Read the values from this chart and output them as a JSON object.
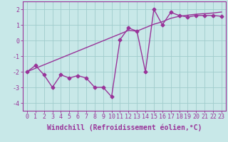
{
  "x": [
    0,
    1,
    2,
    3,
    4,
    5,
    6,
    7,
    8,
    9,
    10,
    11,
    12,
    13,
    14,
    15,
    16,
    17,
    18,
    19,
    20,
    21,
    22,
    23
  ],
  "y_zigzag": [
    -2.0,
    -1.6,
    -2.2,
    -3.0,
    -2.2,
    -2.4,
    -2.25,
    -2.4,
    -3.0,
    -3.0,
    -3.6,
    0.05,
    0.8,
    0.6,
    -2.0,
    2.0,
    1.0,
    1.8,
    1.6,
    1.5,
    1.6,
    1.6,
    1.6,
    1.55
  ],
  "y_trend": [
    -2.0,
    -1.78,
    -1.56,
    -1.34,
    -1.12,
    -0.9,
    -0.68,
    -0.46,
    -0.24,
    -0.02,
    0.2,
    0.42,
    0.64,
    0.6,
    0.82,
    1.04,
    1.2,
    1.42,
    1.55,
    1.62,
    1.68,
    1.72,
    1.76,
    1.82
  ],
  "color": "#993399",
  "bg_color": "#c8e8e8",
  "grid_color": "#a0cccc",
  "xlim": [
    -0.5,
    23.5
  ],
  "ylim": [
    -4.5,
    2.5
  ],
  "yticks": [
    -4,
    -3,
    -2,
    -1,
    0,
    1,
    2
  ],
  "xtick_labels": [
    "0",
    "1",
    "2",
    "3",
    "4",
    "5",
    "6",
    "7",
    "8",
    "9",
    "10",
    "11",
    "12",
    "13",
    "14",
    "15",
    "16",
    "17",
    "18",
    "19",
    "20",
    "21",
    "22",
    "23"
  ],
  "xlabel": "Windchill (Refroidissement éolien,°C)",
  "marker": "D",
  "marker_size": 2.5,
  "line_width": 1.0,
  "font_size": 6.0,
  "xlabel_fontsize": 7.0
}
